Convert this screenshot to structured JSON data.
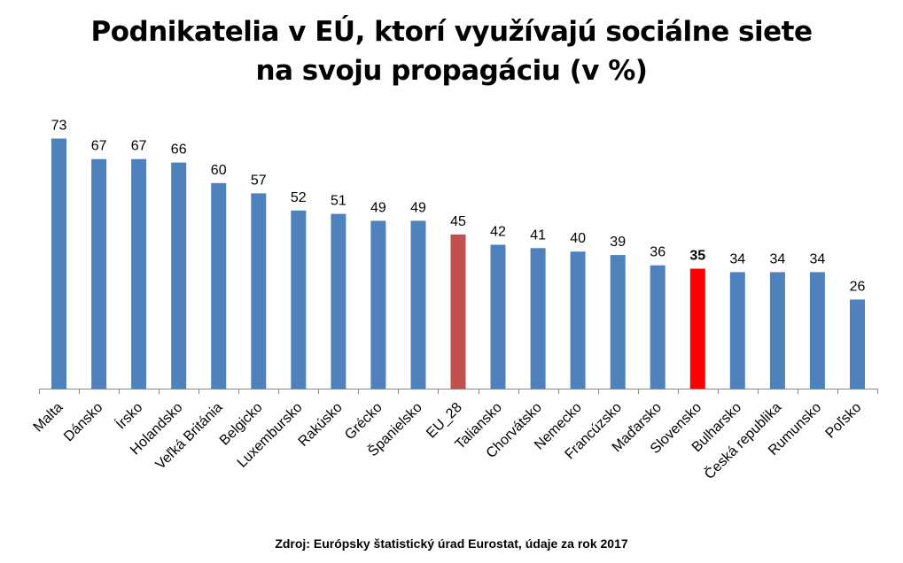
{
  "chart_data": {
    "type": "bar",
    "title_line1": "Podnikatelia v EÚ, ktorí využívajú sociálne siete",
    "title_line2": "na svoju propagáciu  (v %)",
    "categories": [
      "Malta",
      "Dánsko",
      "Írsko",
      "Holandsko",
      "Veľká Británia",
      "Belgicko",
      "Luxembursko",
      "Rakúsko",
      "Grécko",
      "Španielsko",
      "EU_28",
      "Taliansko",
      "Chorvátsko",
      "Nemecko",
      "Francúzsko",
      "Maďarsko",
      "Slovensko",
      "Bulharsko",
      "Česká republika",
      "Rumunsko",
      "Poľsko"
    ],
    "values": [
      73,
      67,
      67,
      66,
      60,
      57,
      52,
      51,
      49,
      49,
      45,
      42,
      41,
      40,
      39,
      36,
      35,
      34,
      34,
      34,
      26
    ],
    "highlight": {
      "EU_28": "#c0504d",
      "Slovensko": "#ff0000"
    },
    "bold_labels": [
      "Slovensko"
    ],
    "bar_color": "#4f81bd",
    "ylim": [
      0,
      80
    ],
    "grid": false,
    "legend": "none"
  },
  "source": "Zdroj: Európsky štatistický úrad Eurostat, údaje za rok 2017"
}
